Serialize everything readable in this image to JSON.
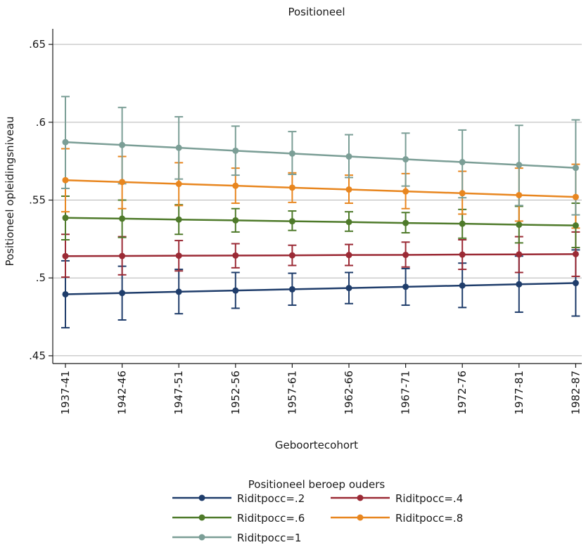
{
  "chart_data": {
    "type": "line",
    "title": "Positioneel",
    "xlabel": "Geboortecohort",
    "ylabel": "Positioneel opleidingsniveau",
    "categories": [
      "1937-41",
      "1942-46",
      "1947-51",
      "1952-56",
      "1957-61",
      "1962-66",
      "1967-71",
      "1972-76",
      "1977-81",
      "1982-87"
    ],
    "yticks": [
      ".45",
      ".5",
      ".55",
      ".6",
      ".65"
    ],
    "ytick_values": [
      0.45,
      0.5,
      0.55,
      0.6,
      0.65
    ],
    "ylim": [
      0.445,
      0.66
    ],
    "grid": true,
    "legend": {
      "title": "Positioneel beroep ouders",
      "position": "bottom"
    },
    "series": [
      {
        "name": "Riditpocc=.2",
        "color": "#1f3d6b",
        "values": [
          0.4895,
          0.4903,
          0.4911,
          0.4919,
          0.4927,
          0.4935,
          0.4943,
          0.4951,
          0.4959,
          0.4967
        ],
        "ci_low": [
          0.468,
          0.473,
          0.477,
          0.4805,
          0.4825,
          0.4835,
          0.4825,
          0.481,
          0.478,
          0.4755
        ],
        "ci_high": [
          0.511,
          0.5075,
          0.5055,
          0.5035,
          0.503,
          0.5035,
          0.506,
          0.5095,
          0.514,
          0.518
        ]
      },
      {
        "name": "Riditpocc=.4",
        "color": "#9b2a35",
        "values": [
          0.514,
          0.5141,
          0.5143,
          0.5144,
          0.5145,
          0.5147,
          0.5148,
          0.515,
          0.5151,
          0.5153
        ],
        "ci_low": [
          0.5005,
          0.502,
          0.5045,
          0.5065,
          0.508,
          0.508,
          0.507,
          0.5055,
          0.5035,
          0.501
        ],
        "ci_high": [
          0.528,
          0.5265,
          0.524,
          0.522,
          0.521,
          0.5215,
          0.523,
          0.5245,
          0.5265,
          0.5295
        ]
      },
      {
        "name": "Riditpocc=.6",
        "color": "#4e7a2a",
        "values": [
          0.5386,
          0.5381,
          0.5375,
          0.537,
          0.5364,
          0.5359,
          0.5353,
          0.5348,
          0.5342,
          0.5337
        ],
        "ci_low": [
          0.5245,
          0.526,
          0.528,
          0.5295,
          0.5305,
          0.53,
          0.529,
          0.5255,
          0.5225,
          0.5195
        ],
        "ci_high": [
          0.5525,
          0.55,
          0.547,
          0.5445,
          0.543,
          0.5425,
          0.542,
          0.544,
          0.546,
          0.548
        ]
      },
      {
        "name": "Riditpocc=.8",
        "color": "#e8861f",
        "values": [
          0.5628,
          0.5616,
          0.5604,
          0.5592,
          0.558,
          0.5568,
          0.5556,
          0.5544,
          0.5532,
          0.552
        ],
        "ci_low": [
          0.5425,
          0.5445,
          0.5465,
          0.548,
          0.5485,
          0.548,
          0.5445,
          0.541,
          0.5365,
          0.532
        ],
        "ci_high": [
          0.583,
          0.578,
          0.574,
          0.5705,
          0.5675,
          0.566,
          0.567,
          0.5685,
          0.5705,
          0.573
        ]
      },
      {
        "name": "Riditpocc=1",
        "color": "#7b9e96",
        "values": [
          0.5872,
          0.5854,
          0.5836,
          0.5817,
          0.5799,
          0.578,
          0.5762,
          0.5744,
          0.5726,
          0.5707
        ],
        "ci_low": [
          0.5575,
          0.5605,
          0.5635,
          0.566,
          0.5665,
          0.5645,
          0.559,
          0.5515,
          0.5465,
          0.5405
        ],
        "ci_high": [
          0.6165,
          0.6095,
          0.6035,
          0.5975,
          0.594,
          0.592,
          0.593,
          0.595,
          0.598,
          0.6015
        ]
      }
    ]
  }
}
